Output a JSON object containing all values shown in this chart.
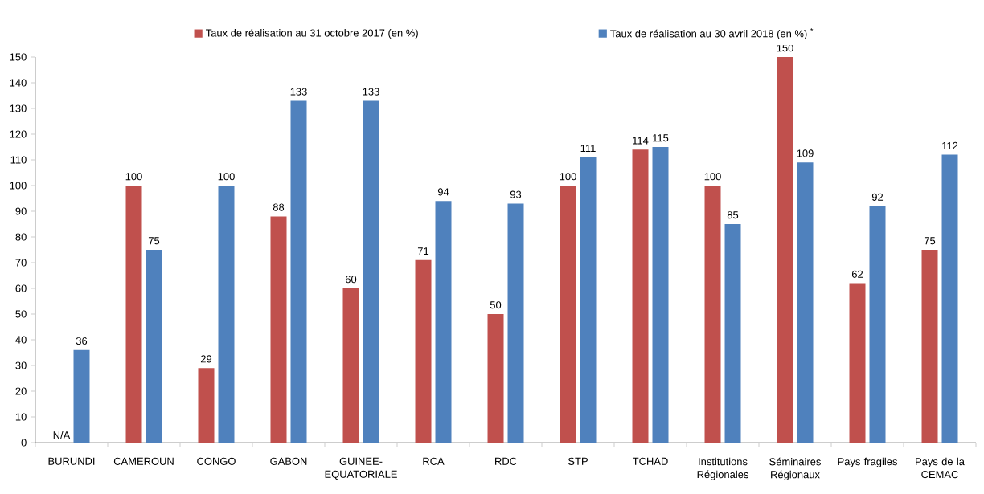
{
  "chart_data": {
    "type": "bar",
    "categories": [
      "BURUNDI",
      "CAMEROUN",
      "CONGO",
      "GABON",
      "GUINEE-EQUATORIALE",
      "RCA",
      "RDC",
      "STP",
      "TCHAD",
      "Institutions Régionales",
      "Séminaires Régionaux",
      "Pays fragiles",
      "Pays de la CEMAC"
    ],
    "series": [
      {
        "name": "Taux de réalisation au 31 octobre 2017 (en %)",
        "color": "#c0504d",
        "values": [
          null,
          100,
          29,
          88,
          60,
          71,
          50,
          100,
          114,
          100,
          150,
          62,
          75
        ],
        "value_labels": [
          "N/A",
          "100",
          "29",
          "88",
          "60",
          "71",
          "50",
          "100",
          "114",
          "100",
          "150",
          "62",
          "75"
        ]
      },
      {
        "name": "Taux de réalisation au 30 avril 2018 (en %) $^{*}$",
        "color": "#4f81bd",
        "values": [
          36,
          75,
          100,
          133,
          133,
          94,
          93,
          111,
          115,
          85,
          109,
          92,
          112
        ],
        "value_labels": [
          "36",
          "75",
          "100",
          "133",
          "133",
          "94",
          "93",
          "111",
          "115",
          "85",
          "109",
          "92",
          "112"
        ]
      }
    ],
    "ylim": [
      0,
      150
    ],
    "yticks": [
      0,
      10,
      20,
      30,
      40,
      50,
      60,
      70,
      80,
      90,
      100,
      110,
      120,
      130,
      140,
      150
    ],
    "grid": false,
    "legend": "top"
  }
}
